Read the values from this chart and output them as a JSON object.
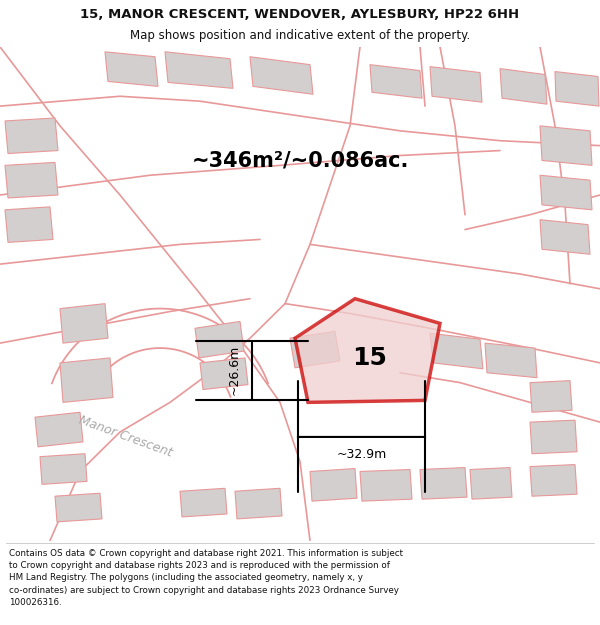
{
  "title_line1": "15, MANOR CRESCENT, WENDOVER, AYLESBURY, HP22 6HH",
  "title_line2": "Map shows position and indicative extent of the property.",
  "area_label": "~346m²/~0.086ac.",
  "property_number": "15",
  "dim_vertical": "~26.6m",
  "dim_horizontal": "~32.9m",
  "street_label": "Manor Crescent",
  "footer_text": "Contains OS data © Crown copyright and database right 2021. This information is subject\nto Crown copyright and database rights 2023 and is reproduced with the permission of\nHM Land Registry. The polygons (including the associated geometry, namely x, y\nco-ordinates) are subject to Crown copyright and database rights 2023 Ordnance Survey\n100026316.",
  "bg_color": "#faf5f5",
  "building_fill": "#d4cfcf",
  "building_edge": "#e89898",
  "road_color": "#e89898",
  "plot_edge_color": "#cc0000",
  "plot_fill": "#f0d0d0",
  "dim_color": "#111111",
  "street_color": "#aaaaaa",
  "title_color": "#111111",
  "footer_color": "#111111",
  "title_fontsize": 9.5,
  "subtitle_fontsize": 8.5,
  "area_fontsize": 15,
  "number_fontsize": 18,
  "dim_fontsize": 9,
  "street_fontsize": 9,
  "footer_fontsize": 6.3
}
